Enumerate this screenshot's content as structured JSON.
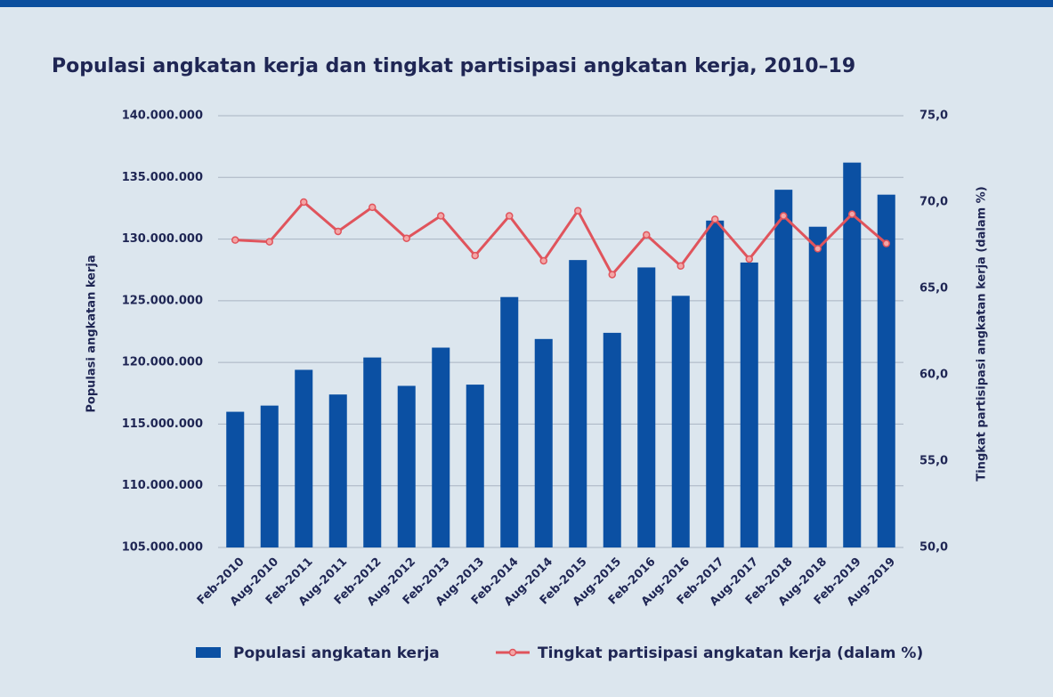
{
  "chart_data": {
    "type": "bar-line",
    "title": "Populasi angkatan kerja dan tingkat partisipasi angkatan kerja, 2010–19",
    "y_label": "Populasi angkatan kerja",
    "y2_label": "Tingkat partisipasi angkatan kerja (dalam %)",
    "categories": [
      "Feb-2010",
      "Aug-2010",
      "Feb-2011",
      "Aug-2011",
      "Feb-2012",
      "Aug-2012",
      "Feb-2013",
      "Aug-2013",
      "Feb-2014",
      "Aug-2014",
      "Feb-2015",
      "Aug-2015",
      "Feb-2016",
      "Aug-2016",
      "Feb-2017",
      "Aug-2017",
      "Feb-2018",
      "Aug-2018",
      "Feb-2019",
      "Aug-2019"
    ],
    "series": [
      {
        "name": "Populasi angkatan kerja",
        "type": "bar",
        "color": "#0b50a3",
        "values": [
          116000000,
          116500000,
          119400000,
          117400000,
          120400000,
          118100000,
          121200000,
          118200000,
          125300000,
          121900000,
          128300000,
          122400000,
          127700000,
          125400000,
          131500000,
          128100000,
          134000000,
          131000000,
          136200000,
          133600000
        ]
      },
      {
        "name": "Tingkat partisipasi angkatan kerja (dalam %)",
        "type": "line",
        "axis": "y2",
        "color": "#e0545c",
        "values": [
          67.8,
          67.7,
          70.0,
          68.3,
          69.7,
          67.9,
          69.2,
          66.9,
          69.2,
          66.6,
          69.5,
          65.8,
          68.1,
          66.3,
          69.0,
          66.7,
          69.2,
          67.3,
          69.3,
          67.6
        ]
      }
    ],
    "ylim": [
      105000000,
      140000000
    ],
    "yticks": [
      {
        "value": 105000000,
        "label": "105.000.000"
      },
      {
        "value": 110000000,
        "label": "110.000.000"
      },
      {
        "value": 115000000,
        "label": "115.000.000"
      },
      {
        "value": 120000000,
        "label": "120.000.000"
      },
      {
        "value": 125000000,
        "label": "125.000.000"
      },
      {
        "value": 130000000,
        "label": "130.000.000"
      },
      {
        "value": 135000000,
        "label": "135.000.000"
      },
      {
        "value": 140000000,
        "label": "140.000.000"
      }
    ],
    "y2lim": [
      50,
      75
    ],
    "y2ticks": [
      {
        "value": 50,
        "label": "50,0"
      },
      {
        "value": 55,
        "label": "55,0"
      },
      {
        "value": 60,
        "label": "60,0"
      },
      {
        "value": 65,
        "label": "65,0"
      },
      {
        "value": 70,
        "label": "70,0"
      },
      {
        "value": 75,
        "label": "75,0"
      }
    ],
    "grid": true
  }
}
